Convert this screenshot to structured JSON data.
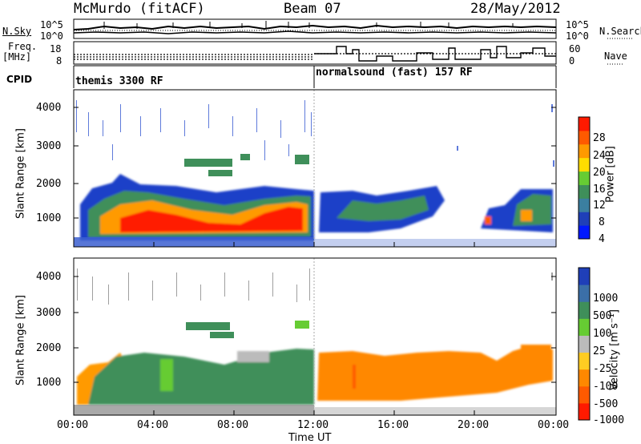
{
  "header": {
    "station": "McMurdo (fitACF)",
    "beam": "Beam 07",
    "date": "28/May/2012"
  },
  "noise_panel": {
    "left_label": "N.Sky",
    "right_label": "N.Search",
    "ticks_left": [
      "10^5",
      "10^0"
    ],
    "ticks_right": [
      "10^5",
      "10^0"
    ]
  },
  "freq_panel": {
    "left_label_line1": "Freq.",
    "left_label_line2": "[MHz]",
    "right_label": "Nave",
    "ticks_left": [
      "18",
      "8"
    ],
    "ticks_right": [
      "60",
      "0"
    ]
  },
  "cpid": {
    "label": "CPID",
    "modes": [
      "themis 3300 RF",
      "normalsound (fast) 157 RF"
    ]
  },
  "time_axis": {
    "label": "Time UT",
    "ticks": [
      "00:00",
      "04:00",
      "08:00",
      "12:00",
      "16:00",
      "20:00",
      "00:00"
    ]
  },
  "chart_data": [
    {
      "type": "heatmap",
      "name": "power",
      "ylabel": "Slant Range [km]",
      "x_range_hours": [
        0,
        24
      ],
      "ylim": [
        180,
        4600
      ],
      "yticks": [
        "4000",
        "3000",
        "2000",
        "1000"
      ],
      "colorbar": {
        "label": "Power [dB]",
        "ticks": [
          "28",
          "24",
          "20",
          "16",
          "12",
          "8",
          "4"
        ],
        "colors": [
          "#0018ff",
          "#1f3fb8",
          "#3b7fa0",
          "#3f8f5a",
          "#66cc33",
          "#ffdd00",
          "#ff9a00",
          "#ff5a00",
          "#ff1a00"
        ]
      }
    },
    {
      "type": "heatmap",
      "name": "velocity",
      "ylabel": "Slant Range [km]",
      "x_range_hours": [
        0,
        24
      ],
      "ylim": [
        180,
        4600
      ],
      "yticks": [
        "4000",
        "3000",
        "2000",
        "1000"
      ],
      "colorbar": {
        "label": "Velocity [m s⁻¹]",
        "ticks": [
          "1000",
          "500",
          "100",
          "25",
          "-25",
          "-100",
          "-500",
          "-1000"
        ],
        "colors": [
          "#1f3fb8",
          "#3b6fa8",
          "#3f8f5a",
          "#66cc33",
          "#bbbbbb",
          "#ffcc22",
          "#ff8800",
          "#ff5a00",
          "#ff1a00"
        ]
      }
    }
  ]
}
